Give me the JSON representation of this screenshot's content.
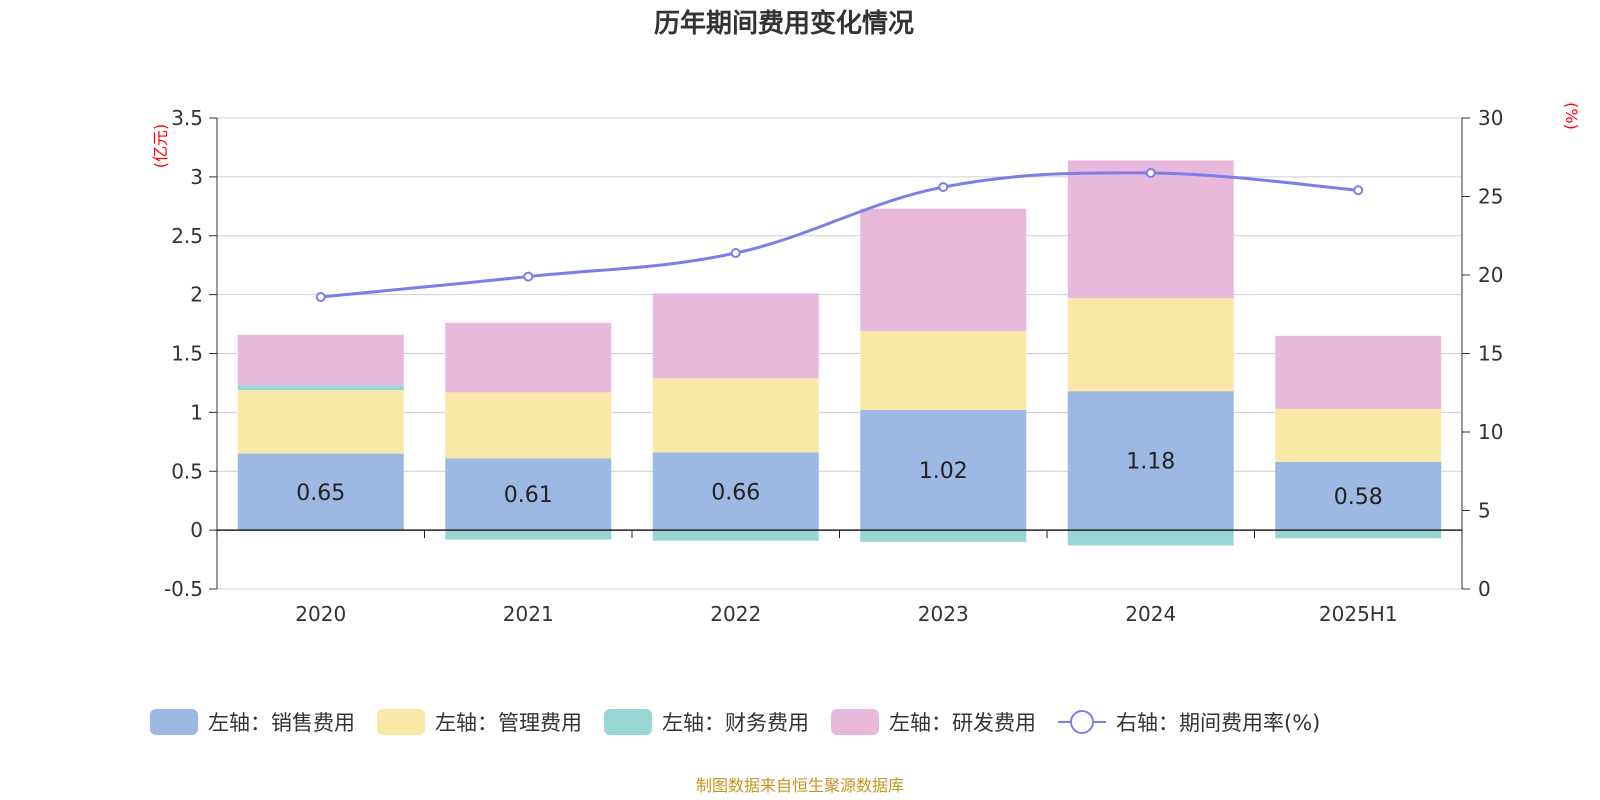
{
  "chart_data": {
    "type": "bar",
    "stacked": true,
    "title": "历年期间费用变化情况",
    "categories": [
      "2020",
      "2021",
      "2022",
      "2023",
      "2024",
      "2025H1"
    ],
    "left_axis": {
      "unit": "(亿元)",
      "ylim": [
        -0.5,
        3.5
      ],
      "ticks": [
        -0.5,
        0,
        0.5,
        1,
        1.5,
        2,
        2.5,
        3,
        3.5
      ],
      "tick_labels": [
        "-0.5",
        "0",
        "0.5",
        "1",
        "1.5",
        "2",
        "2.5",
        "3",
        "3.5"
      ]
    },
    "right_axis": {
      "unit": "(%)",
      "ylim": [
        0,
        30
      ],
      "ticks": [
        0,
        5,
        10,
        15,
        20,
        25,
        30
      ],
      "tick_labels": [
        "0",
        "5",
        "10",
        "15",
        "20",
        "25",
        "30"
      ]
    },
    "series": [
      {
        "name": "左轴：销售费用",
        "type": "bar",
        "color": "#9db8e2",
        "values": [
          0.65,
          0.61,
          0.66,
          1.02,
          1.18,
          0.58
        ],
        "value_labels": [
          "0.65",
          "0.61",
          "0.66",
          "1.02",
          "1.18",
          "0.58"
        ]
      },
      {
        "name": "左轴：管理费用",
        "type": "bar",
        "color": "#f9e8a8",
        "values": [
          0.54,
          0.56,
          0.63,
          0.67,
          0.79,
          0.45
        ]
      },
      {
        "name": "左轴：财务费用",
        "type": "bar",
        "color": "#98d6d6",
        "values": [
          0.04,
          -0.08,
          -0.09,
          -0.1,
          -0.13,
          -0.07
        ]
      },
      {
        "name": "左轴：研发费用",
        "type": "bar",
        "color": "#e8b9db",
        "values": [
          0.43,
          0.59,
          0.72,
          1.04,
          1.17,
          0.62
        ]
      },
      {
        "name": "右轴：期间费用率(%)",
        "type": "line",
        "axis": "right",
        "color": "#7b7ee8",
        "values": [
          18.6,
          19.9,
          21.4,
          25.6,
          26.5,
          25.4
        ]
      }
    ],
    "legend_position": "bottom",
    "grid": true
  },
  "footer": {
    "source": "制图数据来自恒生聚源数据库"
  }
}
